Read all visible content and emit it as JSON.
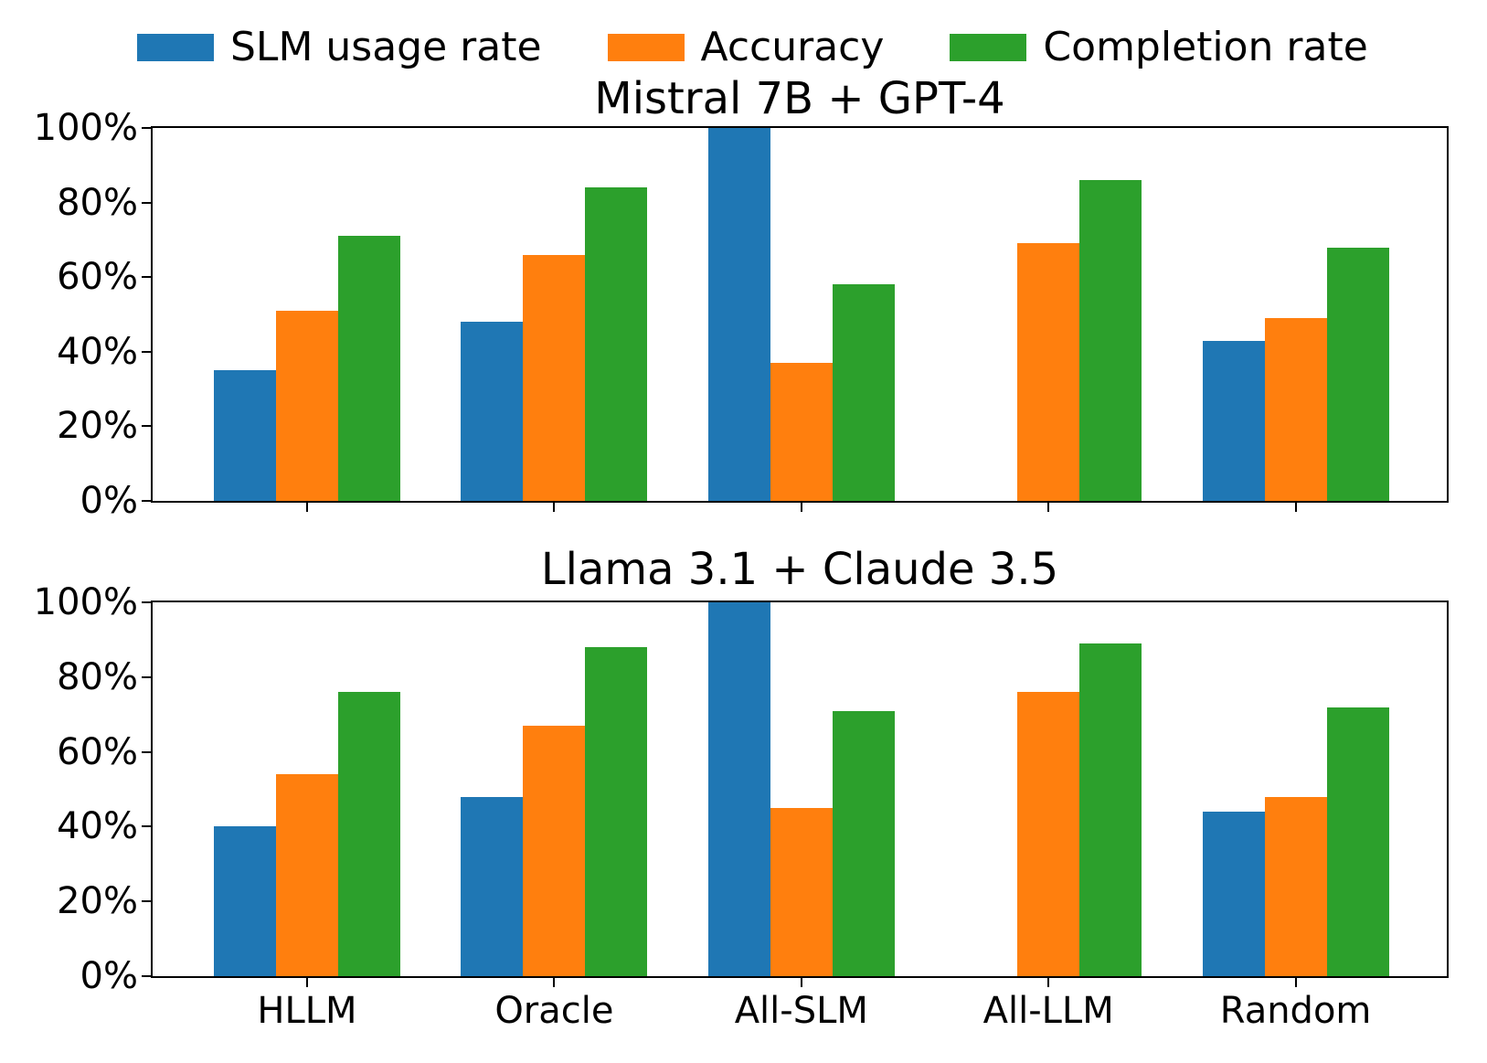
{
  "legend": [
    {
      "label": "SLM usage rate",
      "color": "#1f77b4"
    },
    {
      "label": "Accuracy",
      "color": "#ff7f0e"
    },
    {
      "label": "Completion rate",
      "color": "#2ca02c"
    }
  ],
  "chart_data": [
    {
      "type": "bar",
      "title": "Mistral 7B + GPT-4",
      "categories": [
        "HLLM",
        "Oracle",
        "All-SLM",
        "All-LLM",
        "Random"
      ],
      "series": [
        {
          "name": "SLM usage rate",
          "color": "#1f77b4",
          "values": [
            35,
            48,
            100,
            0,
            43
          ]
        },
        {
          "name": "Accuracy",
          "color": "#ff7f0e",
          "values": [
            51,
            66,
            37,
            69,
            49
          ]
        },
        {
          "name": "Completion rate",
          "color": "#2ca02c",
          "values": [
            71,
            84,
            58,
            86,
            68
          ]
        }
      ],
      "xlabel": "",
      "ylabel": "",
      "ylim": [
        0,
        100
      ],
      "yticks": [
        0,
        20,
        40,
        60,
        80,
        100
      ],
      "ytick_labels": [
        "0%",
        "20%",
        "40%",
        "60%",
        "80%",
        "100%"
      ],
      "show_x_tick_labels": false,
      "grid": false,
      "legend_position": "top"
    },
    {
      "type": "bar",
      "title": "Llama 3.1 + Claude 3.5",
      "categories": [
        "HLLM",
        "Oracle",
        "All-SLM",
        "All-LLM",
        "Random"
      ],
      "series": [
        {
          "name": "SLM usage rate",
          "color": "#1f77b4",
          "values": [
            40,
            48,
            100,
            0,
            44
          ]
        },
        {
          "name": "Accuracy",
          "color": "#ff7f0e",
          "values": [
            54,
            67,
            45,
            76,
            48
          ]
        },
        {
          "name": "Completion rate",
          "color": "#2ca02c",
          "values": [
            76,
            88,
            71,
            89,
            72
          ]
        }
      ],
      "xlabel": "",
      "ylabel": "",
      "ylim": [
        0,
        100
      ],
      "yticks": [
        0,
        20,
        40,
        60,
        80,
        100
      ],
      "ytick_labels": [
        "0%",
        "20%",
        "40%",
        "60%",
        "80%",
        "100%"
      ],
      "show_x_tick_labels": true,
      "grid": false,
      "legend_position": "top"
    }
  ]
}
